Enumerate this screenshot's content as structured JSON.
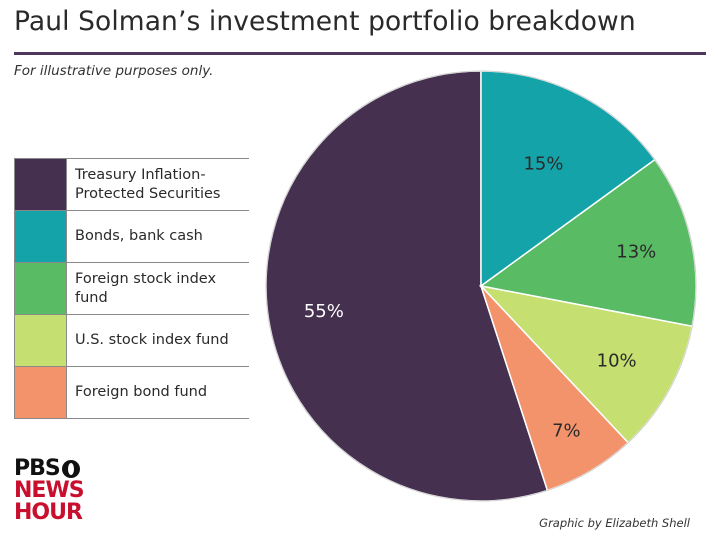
{
  "header": {
    "title": "Paul Solman’s investment portfolio breakdown",
    "subtitle": "For illustrative purposes only."
  },
  "chart_data": {
    "type": "pie",
    "title": "Paul Solman’s investment portfolio breakdown",
    "categories": [
      "Treasury Inflation-Protected Securities",
      "Bonds, bank cash",
      "Foreign stock index fund",
      "U.S. stock index fund",
      "Foreign bond fund"
    ],
    "values": [
      55,
      15,
      13,
      10,
      7
    ],
    "labels": [
      "55%",
      "15%",
      "13%",
      "10%",
      "7%"
    ],
    "colors": [
      "#46304f",
      "#14a3a8",
      "#59bb64",
      "#c5df70",
      "#f3936c"
    ],
    "label_colors": [
      "#ffffff",
      "#2a2a2a",
      "#2a2a2a",
      "#2a2a2a",
      "#2a2a2a"
    ],
    "legend_placement": "left"
  },
  "legend": {
    "items": [
      {
        "label": "Treasury Inflation-\nProtected Securities",
        "color": "#46304f"
      },
      {
        "label": "Bonds, bank cash",
        "color": "#14a3a8"
      },
      {
        "label": "Foreign stock index fund",
        "color": "#59bb64"
      },
      {
        "label": "U.S. stock index fund",
        "color": "#c5df70"
      },
      {
        "label": "Foreign bond fund",
        "color": "#f3936c"
      }
    ]
  },
  "logo": {
    "line1": "PBS",
    "line2": "NEWS",
    "line3": "HOUR"
  },
  "footer": {
    "credit": "Graphic by Elizabeth Shell"
  }
}
